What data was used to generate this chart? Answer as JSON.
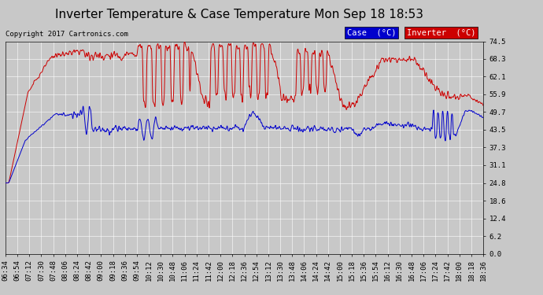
{
  "title": "Inverter Temperature & Case Temperature Mon Sep 18 18:53",
  "copyright": "Copyright 2017 Cartronics.com",
  "yticks": [
    0.0,
    6.2,
    12.4,
    18.6,
    24.8,
    31.1,
    37.3,
    43.5,
    49.7,
    55.9,
    62.1,
    68.3,
    74.5
  ],
  "ylim": [
    0.0,
    74.5
  ],
  "xtick_labels": [
    "06:34",
    "06:54",
    "07:12",
    "07:30",
    "07:48",
    "08:06",
    "08:24",
    "08:42",
    "09:00",
    "09:18",
    "09:36",
    "09:54",
    "10:12",
    "10:30",
    "10:48",
    "11:06",
    "11:24",
    "11:42",
    "12:00",
    "12:18",
    "12:36",
    "12:54",
    "13:12",
    "13:30",
    "13:48",
    "14:06",
    "14:24",
    "14:42",
    "15:00",
    "15:18",
    "15:36",
    "15:54",
    "16:12",
    "16:30",
    "16:48",
    "17:06",
    "17:24",
    "17:42",
    "18:00",
    "18:18",
    "18:36"
  ],
  "bg_color": "#c8c8c8",
  "plot_bg_color": "#c8c8c8",
  "grid_color": "#ffffff",
  "case_color": "#0000cc",
  "inverter_color": "#cc0000",
  "legend_case_bg": "#0000cc",
  "legend_inv_bg": "#cc0000",
  "title_fontsize": 11,
  "tick_fontsize": 6.5,
  "copyright_fontsize": 6.5,
  "legend_fontsize": 7.5
}
